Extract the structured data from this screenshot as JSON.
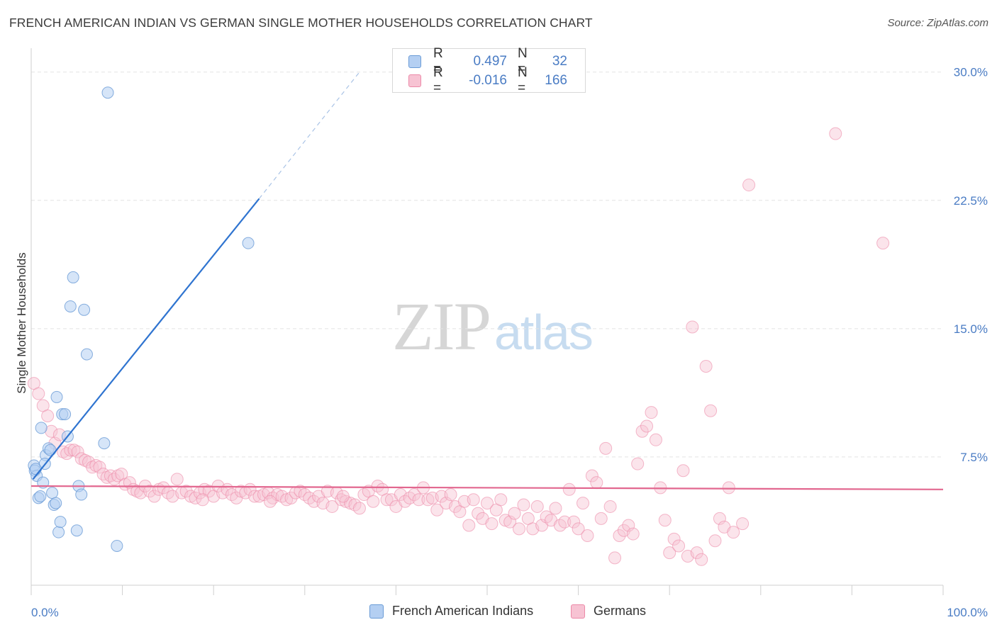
{
  "title": "FRENCH AMERICAN INDIAN VS GERMAN SINGLE MOTHER HOUSEHOLDS CORRELATION CHART",
  "source": "Source: ZipAtlas.com",
  "watermark": {
    "part1": "ZIP",
    "part2": "atlas"
  },
  "stats": [
    {
      "r_label": "R =",
      "r_value": "0.497",
      "n_label": "N =",
      "n_value": "32"
    },
    {
      "r_label": "R =",
      "r_value": "-0.016",
      "n_label": "N =",
      "n_value": "166"
    }
  ],
  "legend": [
    {
      "label": "French American Indians"
    },
    {
      "label": "Germans"
    }
  ],
  "chart_data": {
    "type": "scatter",
    "title": "FRENCH AMERICAN INDIAN VS GERMAN SINGLE MOTHER HOUSEHOLDS CORRELATION CHART",
    "xlabel": "",
    "ylabel": "Single Mother Households",
    "xlim": [
      0,
      100
    ],
    "ylim": [
      0,
      30
    ],
    "x_tick_labels": [
      "0.0%",
      "100.0%"
    ],
    "y_ticks": [
      7.5,
      15.0,
      22.5,
      30.0
    ],
    "y_tick_labels": [
      "7.5%",
      "15.0%",
      "22.5%",
      "30.0%"
    ],
    "grid": true,
    "colors": {
      "blue_fill": "#b4cff2",
      "blue_edge": "#6a9bd6",
      "blue_line": "#2f74d0",
      "pink_fill": "#f7c3d3",
      "pink_edge": "#ec8aa8",
      "pink_line": "#e2678f",
      "tick_text": "#4a7cc4"
    },
    "series": [
      {
        "name": "French American Indians",
        "color": "#6a9bd6",
        "trend": {
          "x": [
            0.2,
            25.0
          ],
          "y": [
            6.2,
            22.6
          ],
          "dashed_to": [
            36.0,
            30.0
          ]
        },
        "points": [
          [
            0.3,
            7.0
          ],
          [
            0.4,
            6.7
          ],
          [
            0.6,
            6.4
          ],
          [
            0.8,
            5.1
          ],
          [
            1.1,
            9.2
          ],
          [
            1.3,
            6.0
          ],
          [
            1.6,
            7.6
          ],
          [
            1.5,
            7.1
          ],
          [
            1.9,
            8.0
          ],
          [
            2.1,
            7.9
          ],
          [
            2.3,
            5.4
          ],
          [
            2.5,
            4.7
          ],
          [
            2.7,
            4.8
          ],
          [
            2.8,
            11.0
          ],
          [
            3.0,
            3.1
          ],
          [
            3.2,
            3.7
          ],
          [
            3.4,
            10.0
          ],
          [
            3.7,
            10.0
          ],
          [
            4.0,
            8.7
          ],
          [
            4.3,
            16.3
          ],
          [
            4.6,
            18.0
          ],
          [
            5.0,
            3.2
          ],
          [
            5.2,
            5.8
          ],
          [
            5.5,
            5.3
          ],
          [
            5.8,
            16.1
          ],
          [
            6.1,
            13.5
          ],
          [
            8.0,
            8.3
          ],
          [
            8.4,
            28.8
          ],
          [
            9.4,
            2.3
          ],
          [
            23.8,
            20.0
          ],
          [
            0.5,
            6.8
          ],
          [
            1.0,
            5.2
          ]
        ]
      },
      {
        "name": "Germans",
        "color": "#ec8aa8",
        "trend": {
          "x": [
            0.0,
            100.0
          ],
          "y": [
            5.8,
            5.6
          ]
        },
        "points": [
          [
            0.3,
            11.8
          ],
          [
            0.8,
            11.2
          ],
          [
            1.3,
            10.5
          ],
          [
            1.8,
            9.9
          ],
          [
            2.2,
            9.0
          ],
          [
            2.6,
            8.3
          ],
          [
            3.1,
            8.8
          ],
          [
            3.5,
            7.8
          ],
          [
            3.9,
            7.7
          ],
          [
            4.3,
            7.9
          ],
          [
            4.7,
            7.9
          ],
          [
            5.1,
            7.8
          ],
          [
            5.5,
            7.4
          ],
          [
            5.9,
            7.3
          ],
          [
            6.3,
            7.2
          ],
          [
            6.7,
            6.9
          ],
          [
            7.1,
            7.0
          ],
          [
            7.5,
            6.9
          ],
          [
            7.9,
            6.5
          ],
          [
            8.3,
            6.3
          ],
          [
            8.7,
            6.4
          ],
          [
            9.1,
            6.2
          ],
          [
            9.5,
            6.4
          ],
          [
            9.9,
            6.5
          ],
          [
            10.3,
            5.9
          ],
          [
            10.8,
            6.0
          ],
          [
            11.2,
            5.6
          ],
          [
            11.6,
            5.5
          ],
          [
            12.0,
            5.4
          ],
          [
            12.5,
            5.8
          ],
          [
            13.0,
            5.5
          ],
          [
            13.5,
            5.2
          ],
          [
            14.0,
            5.6
          ],
          [
            14.5,
            5.7
          ],
          [
            15.0,
            5.4
          ],
          [
            15.5,
            5.2
          ],
          [
            16.0,
            6.2
          ],
          [
            16.5,
            5.4
          ],
          [
            17.0,
            5.5
          ],
          [
            17.5,
            5.2
          ],
          [
            18.0,
            5.1
          ],
          [
            18.5,
            5.4
          ],
          [
            19.0,
            5.6
          ],
          [
            19.5,
            5.5
          ],
          [
            20.0,
            5.2
          ],
          [
            20.5,
            5.8
          ],
          [
            21.0,
            5.4
          ],
          [
            21.5,
            5.6
          ],
          [
            22.0,
            5.3
          ],
          [
            22.5,
            5.1
          ],
          [
            23.0,
            5.5
          ],
          [
            23.5,
            5.4
          ],
          [
            24.0,
            5.6
          ],
          [
            24.5,
            5.2
          ],
          [
            25.0,
            5.2
          ],
          [
            25.5,
            5.3
          ],
          [
            26.0,
            5.4
          ],
          [
            26.5,
            5.1
          ],
          [
            27.0,
            5.3
          ],
          [
            27.5,
            5.2
          ],
          [
            28.0,
            5.0
          ],
          [
            28.5,
            5.1
          ],
          [
            29.0,
            5.4
          ],
          [
            29.5,
            5.5
          ],
          [
            30.0,
            5.3
          ],
          [
            30.5,
            5.1
          ],
          [
            31.0,
            4.9
          ],
          [
            31.5,
            5.2
          ],
          [
            32.0,
            4.8
          ],
          [
            32.5,
            5.5
          ],
          [
            33.0,
            4.6
          ],
          [
            33.5,
            5.4
          ],
          [
            34.0,
            5.0
          ],
          [
            34.5,
            4.9
          ],
          [
            35.0,
            4.8
          ],
          [
            35.5,
            4.7
          ],
          [
            36.0,
            4.5
          ],
          [
            36.5,
            5.3
          ],
          [
            37.0,
            5.5
          ],
          [
            37.5,
            4.9
          ],
          [
            38.0,
            5.8
          ],
          [
            38.5,
            5.6
          ],
          [
            39.0,
            5.0
          ],
          [
            39.5,
            5.0
          ],
          [
            40.0,
            4.6
          ],
          [
            40.5,
            5.3
          ],
          [
            41.0,
            4.9
          ],
          [
            41.5,
            5.1
          ],
          [
            42.0,
            5.3
          ],
          [
            42.5,
            5.0
          ],
          [
            43.0,
            5.7
          ],
          [
            43.5,
            5.0
          ],
          [
            44.0,
            5.1
          ],
          [
            44.5,
            4.4
          ],
          [
            45.0,
            5.2
          ],
          [
            45.5,
            4.8
          ],
          [
            46.0,
            5.3
          ],
          [
            46.5,
            4.6
          ],
          [
            47.0,
            4.3
          ],
          [
            47.5,
            4.9
          ],
          [
            48.0,
            3.5
          ],
          [
            48.5,
            5.0
          ],
          [
            49.0,
            4.2
          ],
          [
            49.5,
            3.9
          ],
          [
            50.0,
            4.8
          ],
          [
            50.5,
            3.6
          ],
          [
            51.0,
            4.4
          ],
          [
            51.5,
            5.0
          ],
          [
            52.0,
            3.8
          ],
          [
            52.5,
            3.7
          ],
          [
            53.0,
            4.2
          ],
          [
            53.5,
            3.3
          ],
          [
            54.0,
            4.7
          ],
          [
            54.5,
            3.9
          ],
          [
            55.0,
            3.3
          ],
          [
            55.5,
            4.6
          ],
          [
            56.0,
            3.5
          ],
          [
            56.5,
            4.0
          ],
          [
            57.0,
            3.8
          ],
          [
            57.5,
            4.5
          ],
          [
            58.0,
            3.5
          ],
          [
            58.5,
            3.7
          ],
          [
            59.0,
            5.6
          ],
          [
            59.5,
            3.7
          ],
          [
            60.0,
            3.3
          ],
          [
            60.5,
            4.8
          ],
          [
            61.0,
            2.9
          ],
          [
            61.5,
            6.4
          ],
          [
            62.0,
            6.0
          ],
          [
            62.5,
            3.9
          ],
          [
            63.0,
            8.0
          ],
          [
            63.5,
            4.6
          ],
          [
            64.0,
            1.6
          ],
          [
            64.5,
            2.9
          ],
          [
            65.0,
            3.2
          ],
          [
            65.5,
            3.5
          ],
          [
            66.0,
            3.0
          ],
          [
            66.5,
            7.1
          ],
          [
            67.0,
            9.0
          ],
          [
            67.5,
            9.3
          ],
          [
            68.0,
            10.1
          ],
          [
            68.5,
            8.5
          ],
          [
            69.0,
            5.7
          ],
          [
            69.5,
            3.8
          ],
          [
            70.0,
            1.9
          ],
          [
            70.5,
            2.7
          ],
          [
            71.0,
            2.3
          ],
          [
            71.5,
            6.7
          ],
          [
            72.0,
            1.7
          ],
          [
            72.5,
            15.1
          ],
          [
            73.0,
            1.9
          ],
          [
            73.5,
            1.5
          ],
          [
            74.0,
            12.8
          ],
          [
            74.5,
            10.2
          ],
          [
            75.0,
            2.6
          ],
          [
            75.5,
            3.9
          ],
          [
            76.0,
            3.4
          ],
          [
            76.5,
            5.7
          ],
          [
            77.0,
            3.1
          ],
          [
            78.0,
            3.6
          ],
          [
            88.2,
            26.4
          ],
          [
            78.7,
            23.4
          ],
          [
            93.4,
            20.0
          ],
          [
            34.2,
            5.2
          ],
          [
            18.8,
            5.0
          ],
          [
            26.2,
            4.9
          ]
        ]
      }
    ]
  }
}
